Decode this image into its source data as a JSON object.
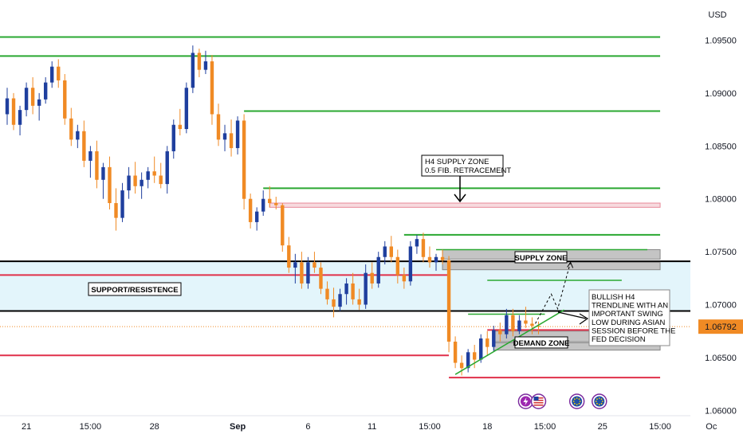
{
  "chart_data": {
    "type": "candlestick",
    "currency": "USD",
    "last_price": "1.06792",
    "y_axis": {
      "range": [
        1.0595,
        1.0988
      ],
      "ticks": [
        "1.09500",
        "1.09000",
        "1.08500",
        "1.08000",
        "1.07500",
        "1.07000",
        "1.06500",
        "1.06000"
      ]
    },
    "x_axis": {
      "ticks": [
        {
          "label": "21",
          "bar": 3,
          "bold": false
        },
        {
          "label": "15:00",
          "bar": 13,
          "bold": false
        },
        {
          "label": "28",
          "bar": 23,
          "bold": false
        },
        {
          "label": "Sep",
          "bar": 36,
          "bold": true
        },
        {
          "label": "6",
          "bar": 47,
          "bold": false
        },
        {
          "label": "11",
          "bar": 57,
          "bold": false
        },
        {
          "label": "15:00",
          "bar": 66,
          "bold": false
        },
        {
          "label": "18",
          "bar": 75,
          "bold": false
        },
        {
          "label": "15:00",
          "bar": 84,
          "bold": false
        },
        {
          "label": "25",
          "bar": 93,
          "bold": false
        },
        {
          "label": "15:00",
          "bar": 102,
          "bold": false
        },
        {
          "label": "Oc",
          "bar": 110,
          "bold": false
        }
      ]
    },
    "up_color": "#1f3f9e",
    "down_color": "#f08a24",
    "candles": [
      [
        1.088,
        1.0905,
        1.087,
        1.0895
      ],
      [
        1.0895,
        1.09,
        1.0865,
        1.087
      ],
      [
        1.087,
        1.0888,
        1.086,
        1.0884
      ],
      [
        1.0884,
        1.091,
        1.0878,
        1.0905
      ],
      [
        1.0905,
        1.0915,
        1.088,
        1.0888
      ],
      [
        1.0888,
        1.09,
        1.0874,
        1.0894
      ],
      [
        1.0894,
        1.0915,
        1.089,
        1.091
      ],
      [
        1.091,
        1.093,
        1.0905,
        1.0925
      ],
      [
        1.0925,
        1.0932,
        1.0905,
        1.0912
      ],
      [
        1.0912,
        1.0918,
        1.087,
        1.0876
      ],
      [
        1.0876,
        1.0886,
        1.085,
        1.0856
      ],
      [
        1.0856,
        1.087,
        1.0848,
        1.0864
      ],
      [
        1.0864,
        1.0874,
        1.083,
        1.0836
      ],
      [
        1.0836,
        1.085,
        1.082,
        1.0845
      ],
      [
        1.0845,
        1.0855,
        1.081,
        1.0818
      ],
      [
        1.0818,
        1.0834,
        1.08,
        1.083
      ],
      [
        1.083,
        1.084,
        1.079,
        1.0796
      ],
      [
        1.0796,
        1.081,
        1.077,
        1.0782
      ],
      [
        1.0782,
        1.0815,
        1.0778,
        1.0808
      ],
      [
        1.0808,
        1.083,
        1.08,
        1.0822
      ],
      [
        1.0822,
        1.0835,
        1.0805,
        1.0812
      ],
      [
        1.0812,
        1.0825,
        1.08,
        1.0818
      ],
      [
        1.0818,
        1.083,
        1.081,
        1.0826
      ],
      [
        1.0826,
        1.084,
        1.0815,
        1.0822
      ],
      [
        1.0822,
        1.0834,
        1.081,
        1.0814
      ],
      [
        1.0814,
        1.085,
        1.0805,
        1.0845
      ],
      [
        1.0845,
        1.0875,
        1.0838,
        1.087
      ],
      [
        1.087,
        1.0885,
        1.086,
        1.0866
      ],
      [
        1.0866,
        1.091,
        1.0862,
        1.0905
      ],
      [
        1.0905,
        1.0945,
        1.09,
        1.0938
      ],
      [
        1.0938,
        1.0942,
        1.0915,
        1.0922
      ],
      [
        1.0922,
        1.094,
        1.0918,
        1.093
      ],
      [
        1.093,
        1.0936,
        1.087,
        1.088
      ],
      [
        1.088,
        1.089,
        1.085,
        1.0856
      ],
      [
        1.0856,
        1.087,
        1.0845,
        1.0862
      ],
      [
        1.0862,
        1.0875,
        1.084,
        1.0848
      ],
      [
        1.0848,
        1.0878,
        1.0842,
        1.0874
      ],
      [
        1.0874,
        1.088,
        1.079,
        1.08
      ],
      [
        1.08,
        1.0805,
        1.0772,
        1.0778
      ],
      [
        1.0778,
        1.0792,
        1.077,
        1.0788
      ],
      [
        1.0788,
        1.0808,
        1.0784,
        1.08
      ],
      [
        1.08,
        1.0812,
        1.0792,
        1.0796
      ],
      [
        1.0796,
        1.0802,
        1.079,
        1.0794
      ],
      [
        1.0794,
        1.0796,
        1.075,
        1.0756
      ],
      [
        1.0756,
        1.0764,
        1.073,
        1.0735
      ],
      [
        1.0735,
        1.0748,
        1.072,
        1.074
      ],
      [
        1.074,
        1.075,
        1.0715,
        1.072
      ],
      [
        1.072,
        1.0745,
        1.0715,
        1.074
      ],
      [
        1.074,
        1.075,
        1.073,
        1.0735
      ],
      [
        1.0735,
        1.074,
        1.071,
        1.0715
      ],
      [
        1.0715,
        1.0722,
        1.07,
        1.0705
      ],
      [
        1.0705,
        1.0716,
        1.0688,
        1.0698
      ],
      [
        1.0698,
        1.0715,
        1.0694,
        1.071
      ],
      [
        1.071,
        1.0725,
        1.07,
        1.072
      ],
      [
        1.072,
        1.073,
        1.07,
        1.0705
      ],
      [
        1.0705,
        1.0715,
        1.0695,
        1.07
      ],
      [
        1.07,
        1.0738,
        1.0696,
        1.073
      ],
      [
        1.073,
        1.074,
        1.0715,
        1.072
      ],
      [
        1.072,
        1.075,
        1.0716,
        1.0745
      ],
      [
        1.0745,
        1.076,
        1.0738,
        1.0755
      ],
      [
        1.0755,
        1.0765,
        1.074,
        1.0745
      ],
      [
        1.0745,
        1.0752,
        1.072,
        1.0728
      ],
      [
        1.0728,
        1.0735,
        1.0715,
        1.0722
      ],
      [
        1.0722,
        1.076,
        1.0718,
        1.0755
      ],
      [
        1.0755,
        1.0766,
        1.0748,
        1.0762
      ],
      [
        1.0762,
        1.0768,
        1.074,
        1.0745
      ],
      [
        1.0745,
        1.0755,
        1.0735,
        1.074
      ],
      [
        1.074,
        1.0748,
        1.0732,
        1.0745
      ],
      [
        1.0745,
        1.0752,
        1.0738,
        1.0742
      ],
      [
        1.0742,
        1.0746,
        1.0655,
        1.0665
      ],
      [
        1.0665,
        1.067,
        1.064,
        1.0645
      ],
      [
        1.0645,
        1.0652,
        1.0633,
        1.064
      ],
      [
        1.064,
        1.0658,
        1.0636,
        1.0655
      ],
      [
        1.0655,
        1.0662,
        1.064,
        1.0648
      ],
      [
        1.0648,
        1.0672,
        1.0645,
        1.0668
      ],
      [
        1.0668,
        1.0675,
        1.0652,
        1.066
      ],
      [
        1.066,
        1.068,
        1.0656,
        1.0676
      ],
      [
        1.0676,
        1.0683,
        1.0665,
        1.0672
      ],
      [
        1.0672,
        1.0696,
        1.0668,
        1.069
      ],
      [
        1.069,
        1.0696,
        1.067,
        1.0675
      ],
      [
        1.0675,
        1.069,
        1.0672,
        1.0685
      ],
      [
        1.0685,
        1.0698,
        1.0678,
        1.0682
      ],
      [
        1.0682,
        1.0688,
        1.0672,
        1.068
      ],
      [
        1.068,
        1.0684,
        1.0672,
        1.0679
      ]
    ],
    "lines": [
      {
        "price": 1.0953,
        "from": -3,
        "to": 102,
        "color": "#2aa831",
        "width": 2
      },
      {
        "price": 1.0935,
        "from": -3,
        "to": 102,
        "color": "#2aa831",
        "width": 2
      },
      {
        "price": 1.0883,
        "from": 37,
        "to": 102,
        "color": "#2aa831",
        "width": 2
      },
      {
        "price": 1.081,
        "from": 40,
        "to": 102,
        "color": "#2aa831",
        "width": 2
      },
      {
        "price": 1.0766,
        "from": 62,
        "to": 102,
        "color": "#2aa831",
        "width": 2
      },
      {
        "price": 1.0752,
        "from": 67,
        "to": 100,
        "color": "#2aa831",
        "width": 1.5
      },
      {
        "price": 1.0723,
        "from": 75,
        "to": 96,
        "color": "#2aa831",
        "width": 1.5
      },
      {
        "price": 1.0691,
        "from": 72,
        "to": 84,
        "color": "#2aa831",
        "width": 1.5
      },
      {
        "price": 1.0728,
        "from": -3,
        "to": 69,
        "color": "#e0304a",
        "width": 2
      },
      {
        "price": 1.0676,
        "from": 75,
        "to": 102,
        "color": "#e0304a",
        "width": 2
      },
      {
        "price": 1.0652,
        "from": -3,
        "to": 69,
        "color": "#e0304a",
        "width": 2
      },
      {
        "price": 1.0631,
        "from": 69,
        "to": 102,
        "color": "#e0304a",
        "width": 2
      }
    ],
    "zones": [
      {
        "top": 1.0796,
        "bottom": 1.0792,
        "from": 41,
        "to": 102,
        "fill": "#f7dade",
        "stroke": "#e88a9a"
      },
      {
        "top": 1.0752,
        "bottom": 1.0743,
        "from": 68,
        "to": 102,
        "fill": "#c4c4c4",
        "stroke": "#888888"
      },
      {
        "top": 1.074,
        "bottom": 1.0733,
        "from": 68,
        "to": 102,
        "fill": "#c4c4c4",
        "stroke": "#888888"
      },
      {
        "top": 1.0675,
        "bottom": 1.0665,
        "from": 76,
        "to": 102,
        "fill": "#c4c4c4",
        "stroke": "#888888"
      },
      {
        "top": 1.0664,
        "bottom": 1.0657,
        "from": 76,
        "to": 102,
        "fill": "#c4c4c4",
        "stroke": "#888888"
      }
    ],
    "support_band": {
      "top": 1.0741,
      "bottom": 1.0694,
      "fill": "#e3f5fb",
      "stroke": "#000000"
    },
    "trendline": {
      "x1": 70,
      "y1": 1.0634,
      "x2": 87,
      "y2": 1.0695,
      "color": "#2aa831"
    },
    "projection": [
      [
        82.5,
        1.0682
      ],
      [
        85,
        1.071
      ],
      [
        86,
        1.0696
      ],
      [
        88,
        1.074
      ]
    ],
    "annotations": {
      "h4_supply": [
        "H4 SUPPLY ZONE",
        "0.5 FIB. RETRACEMENT"
      ],
      "support_resistance": "SUPPORT/RESISTENCE",
      "supply_zone": "SUPPLY ZONE",
      "demand_zone": "DEMAND ZONE",
      "bullish_note": [
        "BULLISH H4",
        "TRENDLINE WITH AN",
        "IMPORTANT SWING",
        "LOW DURING ASIAN",
        "SESSION BEFORE THE",
        "FED DECISION"
      ]
    },
    "events": [
      {
        "bar": 81,
        "icon": "lightning-icon",
        "bg": "#9c27b0"
      },
      {
        "bar": 83,
        "icon": "us-flag-icon",
        "bg": "#ffffff"
      },
      {
        "bar": 89,
        "icon": "eu-flag-icon",
        "bg": "#1e4fa8"
      },
      {
        "bar": 92.5,
        "icon": "eu-flag-icon",
        "bg": "#1e4fa8"
      }
    ]
  }
}
